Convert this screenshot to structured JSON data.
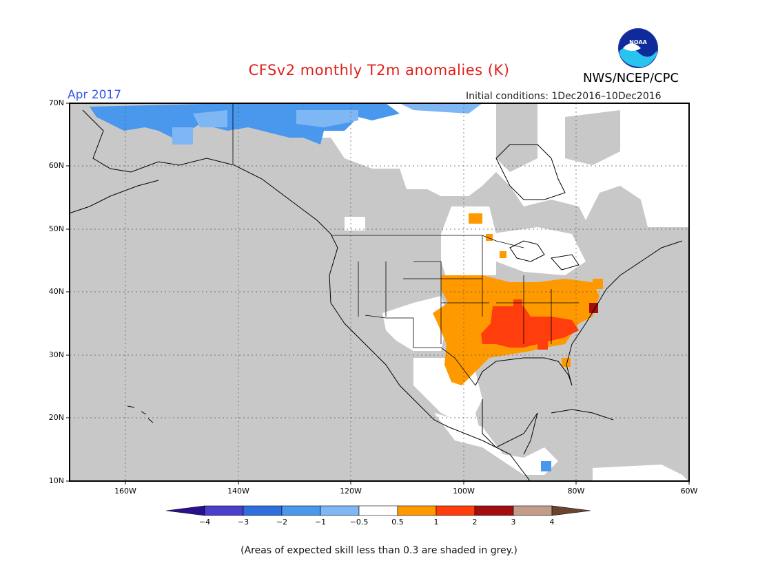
{
  "title": "CFSv2 monthly T2m anomalies (K)",
  "organization": "NWS/NCEP/CPC",
  "logo_text": "NOAA",
  "valid_month": "Apr 2017",
  "initial_conditions": "Initial conditions: 1Dec2016–10Dec2016",
  "footer_note": "(Areas of expected skill less than 0.3 are shaded in grey.)",
  "map": {
    "lon_range": [
      -170,
      -60
    ],
    "lat_range": [
      10,
      70
    ],
    "lat_labels": [
      "10N",
      "20N",
      "30N",
      "40N",
      "50N",
      "60N",
      "70N"
    ],
    "lon_labels": [
      "160W",
      "140W",
      "120W",
      "100W",
      "80W",
      "60W"
    ],
    "no_skill_color": "#c8c8c8"
  },
  "colorbar": {
    "labels": [
      "−4",
      "−3",
      "−2",
      "−1",
      "−0.5",
      "0.5",
      "1",
      "2",
      "3",
      "4"
    ],
    "colors": [
      "#2a0f8f",
      "#4a3fcb",
      "#2f6fdd",
      "#4a97ee",
      "#7fb7f5",
      "#ffffff",
      "#ff9900",
      "#ff3d0d",
      "#a30d0d",
      "#c49c8c",
      "#6b4430"
    ]
  }
}
